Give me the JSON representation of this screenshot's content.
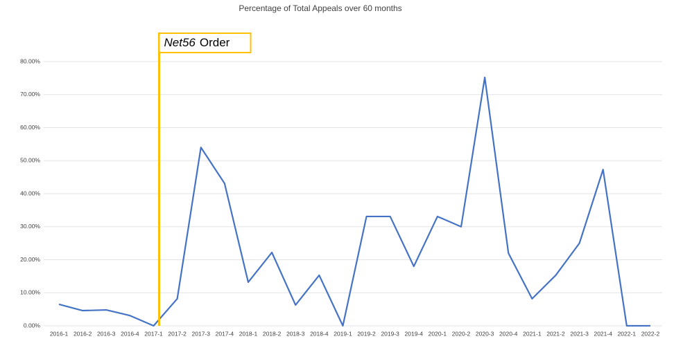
{
  "chart_data": {
    "type": "line",
    "title": "Percentage of Total Appeals over 60 months",
    "categories": [
      "2016-1",
      "2016-2",
      "2016-3",
      "2016-4",
      "2017-1",
      "2017-2",
      "2017-3",
      "2017-4",
      "2018-1",
      "2018-2",
      "2018-3",
      "2018-4",
      "2019-1",
      "2019-2",
      "2019-3",
      "2019-4",
      "2020-1",
      "2020-2",
      "2020-3",
      "2020-4",
      "2021-1",
      "2021-2",
      "2021-3",
      "2021-4",
      "2022-1",
      "2022-2"
    ],
    "values": [
      6.5,
      4.6,
      4.8,
      3.1,
      0,
      8.2,
      54,
      43.1,
      13.2,
      22.2,
      6.3,
      15.3,
      0,
      33.1,
      33.1,
      18,
      33.1,
      30,
      75.2,
      22,
      8.2,
      15.3,
      25,
      47.3,
      0,
      0
    ],
    "color": "#4472c4",
    "ylim": [
      0,
      80
    ],
    "yticks": [
      {
        "value": 0,
        "label": "0.00%"
      },
      {
        "value": 10,
        "label": "10.00%"
      },
      {
        "value": 20,
        "label": "20.00%"
      },
      {
        "value": 30,
        "label": "30.00%"
      },
      {
        "value": 40,
        "label": "40.00%"
      },
      {
        "value": 50,
        "label": "50.00%"
      },
      {
        "value": 60,
        "label": "60.00%"
      },
      {
        "value": 70,
        "label": "70.00%"
      },
      {
        "value": 80,
        "label": "80.00%"
      }
    ],
    "grid": true,
    "annotation": {
      "italic_text": "Net56",
      "text": "Order",
      "x": "2017-1",
      "color": "#ffc000"
    }
  }
}
